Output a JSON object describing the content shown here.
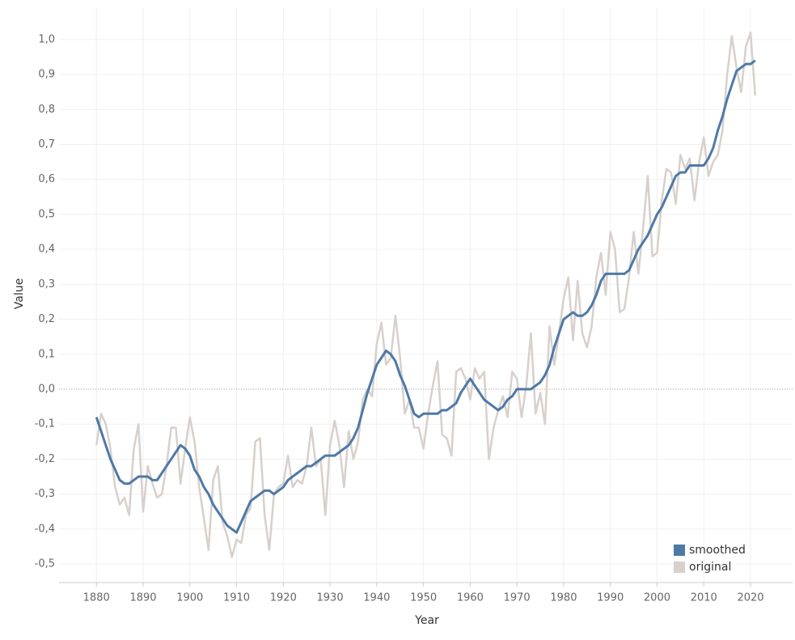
{
  "chart_data": {
    "type": "line",
    "x_label": "Year",
    "y_label": "Value",
    "x": [
      1880,
      1881,
      1882,
      1883,
      1884,
      1885,
      1886,
      1887,
      1888,
      1889,
      1890,
      1891,
      1892,
      1893,
      1894,
      1895,
      1896,
      1897,
      1898,
      1899,
      1900,
      1901,
      1902,
      1903,
      1904,
      1905,
      1906,
      1907,
      1908,
      1909,
      1910,
      1911,
      1912,
      1913,
      1914,
      1915,
      1916,
      1917,
      1918,
      1919,
      1920,
      1921,
      1922,
      1923,
      1924,
      1925,
      1926,
      1927,
      1928,
      1929,
      1930,
      1931,
      1932,
      1933,
      1934,
      1935,
      1936,
      1937,
      1938,
      1939,
      1940,
      1941,
      1942,
      1943,
      1944,
      1945,
      1946,
      1947,
      1948,
      1949,
      1950,
      1951,
      1952,
      1953,
      1954,
      1955,
      1956,
      1957,
      1958,
      1959,
      1960,
      1961,
      1962,
      1963,
      1964,
      1965,
      1966,
      1967,
      1968,
      1969,
      1970,
      1971,
      1972,
      1973,
      1974,
      1975,
      1976,
      1977,
      1978,
      1979,
      1980,
      1981,
      1982,
      1983,
      1984,
      1985,
      1986,
      1987,
      1988,
      1989,
      1990,
      1991,
      1992,
      1993,
      1994,
      1995,
      1996,
      1997,
      1998,
      1999,
      2000,
      2001,
      2002,
      2003,
      2004,
      2005,
      2006,
      2007,
      2008,
      2009,
      2010,
      2011,
      2012,
      2013,
      2014,
      2015,
      2016,
      2017,
      2018,
      2019,
      2020,
      2021
    ],
    "series": [
      {
        "name": "smoothed",
        "color": "#4e79a7",
        "values": [
          -0.08,
          -0.12,
          -0.16,
          -0.2,
          -0.23,
          -0.26,
          -0.27,
          -0.27,
          -0.26,
          -0.25,
          -0.25,
          -0.25,
          -0.26,
          -0.26,
          -0.24,
          -0.22,
          -0.2,
          -0.18,
          -0.16,
          -0.17,
          -0.19,
          -0.23,
          -0.25,
          -0.28,
          -0.3,
          -0.33,
          -0.35,
          -0.37,
          -0.39,
          -0.4,
          -0.41,
          -0.38,
          -0.35,
          -0.32,
          -0.31,
          -0.3,
          -0.29,
          -0.29,
          -0.3,
          -0.29,
          -0.28,
          -0.26,
          -0.25,
          -0.24,
          -0.23,
          -0.22,
          -0.22,
          -0.21,
          -0.2,
          -0.19,
          -0.19,
          -0.19,
          -0.18,
          -0.17,
          -0.16,
          -0.14,
          -0.11,
          -0.06,
          -0.01,
          0.03,
          0.07,
          0.09,
          0.11,
          0.1,
          0.08,
          0.04,
          0.01,
          -0.03,
          -0.07,
          -0.08,
          -0.07,
          -0.07,
          -0.07,
          -0.07,
          -0.06,
          -0.06,
          -0.05,
          -0.04,
          -0.01,
          0.01,
          0.03,
          0.01,
          -0.01,
          -0.03,
          -0.04,
          -0.05,
          -0.06,
          -0.05,
          -0.03,
          -0.02,
          0.0,
          0.0,
          0.0,
          0.0,
          0.01,
          0.02,
          0.04,
          0.07,
          0.12,
          0.16,
          0.2,
          0.21,
          0.22,
          0.21,
          0.21,
          0.22,
          0.24,
          0.27,
          0.31,
          0.33,
          0.33,
          0.33,
          0.33,
          0.33,
          0.34,
          0.37,
          0.4,
          0.42,
          0.44,
          0.47,
          0.5,
          0.52,
          0.55,
          0.58,
          0.61,
          0.62,
          0.62,
          0.64,
          0.64,
          0.64,
          0.64,
          0.66,
          0.69,
          0.74,
          0.78,
          0.83,
          0.87,
          0.91,
          0.92,
          0.93,
          0.93,
          0.94
        ]
      },
      {
        "name": "original",
        "color": "#d7d0cc",
        "values": [
          -0.16,
          -0.07,
          -0.1,
          -0.17,
          -0.28,
          -0.33,
          -0.31,
          -0.36,
          -0.17,
          -0.1,
          -0.35,
          -0.22,
          -0.27,
          -0.31,
          -0.3,
          -0.22,
          -0.11,
          -0.11,
          -0.27,
          -0.17,
          -0.08,
          -0.15,
          -0.28,
          -0.37,
          -0.46,
          -0.26,
          -0.22,
          -0.38,
          -0.42,
          -0.48,
          -0.43,
          -0.44,
          -0.36,
          -0.34,
          -0.15,
          -0.14,
          -0.36,
          -0.46,
          -0.3,
          -0.28,
          -0.27,
          -0.19,
          -0.28,
          -0.26,
          -0.27,
          -0.22,
          -0.11,
          -0.22,
          -0.2,
          -0.36,
          -0.16,
          -0.09,
          -0.16,
          -0.28,
          -0.12,
          -0.2,
          -0.15,
          -0.03,
          0.0,
          -0.02,
          0.13,
          0.19,
          0.07,
          0.09,
          0.21,
          0.09,
          -0.07,
          -0.03,
          -0.11,
          -0.11,
          -0.17,
          -0.07,
          0.01,
          0.08,
          -0.13,
          -0.14,
          -0.19,
          0.05,
          0.06,
          0.03,
          -0.03,
          0.06,
          0.03,
          0.05,
          -0.2,
          -0.11,
          -0.06,
          -0.02,
          -0.08,
          0.05,
          0.03,
          -0.08,
          0.01,
          0.16,
          -0.07,
          -0.01,
          -0.1,
          0.18,
          0.07,
          0.16,
          0.26,
          0.32,
          0.14,
          0.31,
          0.16,
          0.12,
          0.18,
          0.32,
          0.39,
          0.27,
          0.45,
          0.4,
          0.22,
          0.23,
          0.32,
          0.45,
          0.33,
          0.46,
          0.61,
          0.38,
          0.39,
          0.54,
          0.63,
          0.62,
          0.53,
          0.67,
          0.63,
          0.66,
          0.54,
          0.65,
          0.72,
          0.61,
          0.65,
          0.67,
          0.74,
          0.9,
          1.01,
          0.92,
          0.85,
          0.98,
          1.02,
          0.84
        ]
      }
    ],
    "xlim": [
      1872,
      2029
    ],
    "xticks": [
      1880,
      1890,
      1900,
      1910,
      1920,
      1930,
      1940,
      1950,
      1960,
      1970,
      1980,
      1990,
      2000,
      2010,
      2020
    ],
    "ylim": [
      -0.553,
      1.09
    ],
    "yticks": [
      {
        "value": -0.5,
        "label": "-0,5"
      },
      {
        "value": -0.4,
        "label": "-0,4"
      },
      {
        "value": -0.3,
        "label": "-0,3"
      },
      {
        "value": -0.2,
        "label": "-0,2"
      },
      {
        "value": -0.1,
        "label": "-0,1"
      },
      {
        "value": 0,
        "label": "0,0"
      },
      {
        "value": 0.1,
        "label": "0,1"
      },
      {
        "value": 0.2,
        "label": "0,2"
      },
      {
        "value": 0.3,
        "label": "0,3"
      },
      {
        "value": 0.4,
        "label": "0,4"
      },
      {
        "value": 0.5,
        "label": "0,5"
      },
      {
        "value": 0.6,
        "label": "0,6"
      },
      {
        "value": 0.7,
        "label": "0,7"
      },
      {
        "value": 0.8,
        "label": "0,8"
      },
      {
        "value": 0.9,
        "label": "0,9"
      },
      {
        "value": 1.0,
        "label": "1,0"
      }
    ],
    "grid": true,
    "legend": "lower right"
  }
}
